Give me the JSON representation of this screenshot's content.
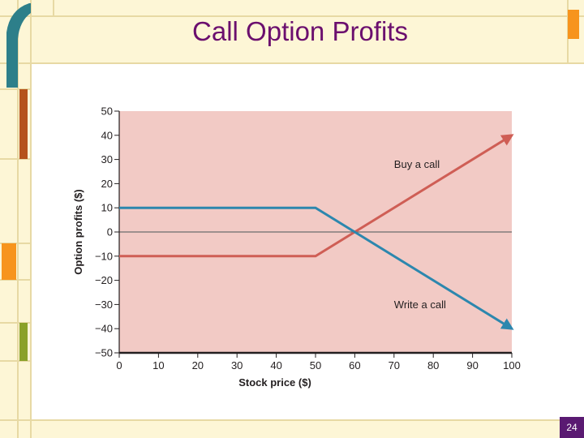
{
  "slide": {
    "title": "Call Option Profits",
    "page_number": "24"
  },
  "colors": {
    "frame_fill": "#fdf6d6",
    "frame_line": "#e7d9a4",
    "accent_teal": "#2d7f8a",
    "accent_brown": "#b5531c",
    "accent_orange": "#f7941d",
    "accent_olive": "#8aa129",
    "title": "#6b0f6e",
    "plot_bg": "#f2cac5",
    "buy_line": "#cf5e55",
    "write_line": "#2c87ae"
  },
  "chart_data": {
    "type": "line",
    "title": "",
    "xlabel": "Stock price ($)",
    "ylabel": "Option profits ($)",
    "xlim": [
      0,
      100
    ],
    "ylim": [
      -50,
      50
    ],
    "x_ticks": [
      0,
      10,
      20,
      30,
      40,
      50,
      60,
      70,
      80,
      90,
      100
    ],
    "y_ticks": [
      50,
      40,
      30,
      20,
      10,
      0,
      -10,
      -20,
      -30,
      -40,
      -50
    ],
    "y_tick_labels": [
      "50",
      "40",
      "30",
      "20",
      "10",
      "0",
      "−10",
      "−20",
      "−30",
      "−40",
      "−50"
    ],
    "grid": false,
    "series": [
      {
        "name": "Buy a call",
        "x": [
          0,
          50,
          100
        ],
        "y": [
          -10,
          -10,
          40
        ]
      },
      {
        "name": "Write a call",
        "x": [
          0,
          50,
          100
        ],
        "y": [
          10,
          10,
          -40
        ]
      }
    ]
  }
}
